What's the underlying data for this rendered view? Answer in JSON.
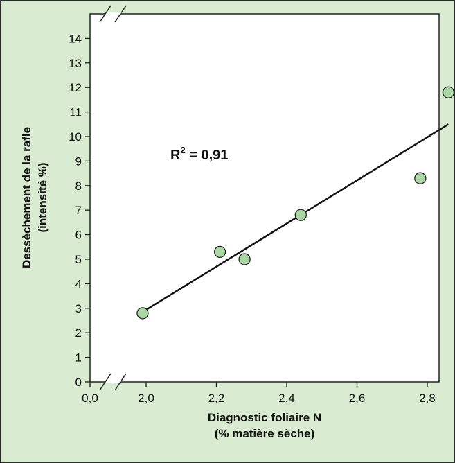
{
  "chart_data": {
    "type": "scatter",
    "title": "",
    "xlabel": [
      "Diagnostic foliaire N",
      "(% matière sèche)"
    ],
    "ylabel": [
      "Dessèchement de la rafle",
      "(intensité %)"
    ],
    "x_ticks": [
      "0,0",
      "2,0",
      "2,2",
      "2,4",
      "2,6",
      "2,8"
    ],
    "y_ticks": [
      "0",
      "1",
      "2",
      "3",
      "4",
      "5",
      "6",
      "7",
      "8",
      "9",
      "10",
      "11",
      "12",
      "13",
      "14"
    ],
    "xlim": [
      1.8,
      2.9
    ],
    "ylim": [
      0,
      15
    ],
    "axis_break": true,
    "grid": false,
    "points": [
      {
        "x": 1.99,
        "y": 2.8
      },
      {
        "x": 2.21,
        "y": 5.3
      },
      {
        "x": 2.28,
        "y": 5.0
      },
      {
        "x": 2.44,
        "y": 6.8
      },
      {
        "x": 2.78,
        "y": 8.3
      },
      {
        "x": 2.86,
        "y": 11.8
      }
    ],
    "trendline": {
      "x_start": 1.99,
      "y_start": 2.85,
      "x_end": 2.86,
      "y_end": 10.5
    },
    "annotation": {
      "base": "R",
      "sup": "2",
      "rest": " = 0,91"
    },
    "colors": {
      "background": "#d9ecd2",
      "marker_fill": "#a9d6a2",
      "marker_edge": "#222222",
      "line": "#111111"
    }
  }
}
